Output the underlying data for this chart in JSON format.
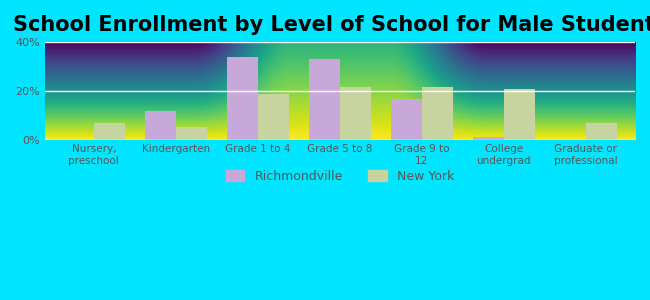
{
  "title": "School Enrollment by Level of School for Male Students",
  "categories": [
    "Nursery,\npreschool",
    "Kindergarten",
    "Grade 1 to 4",
    "Grade 5 to 8",
    "Grade 9 to\n12",
    "College\nundergrad",
    "Graduate or\nprofessional"
  ],
  "richmondville": [
    0.0,
    12.0,
    34.0,
    33.0,
    17.0,
    1.5,
    0.0
  ],
  "new_york": [
    7.0,
    5.5,
    19.0,
    21.5,
    21.5,
    21.0,
    7.0
  ],
  "bar_color_rich": "#c8a8d8",
  "bar_color_ny": "#c8d4a0",
  "bg_outer": "#00e5ff",
  "ylim": [
    0,
    40
  ],
  "yticks": [
    0,
    20,
    40
  ],
  "ytick_labels": [
    "0%",
    "20%",
    "40%"
  ],
  "legend_rich": "Richmondville",
  "legend_ny": "New York",
  "title_fontsize": 15,
  "bar_width": 0.38
}
